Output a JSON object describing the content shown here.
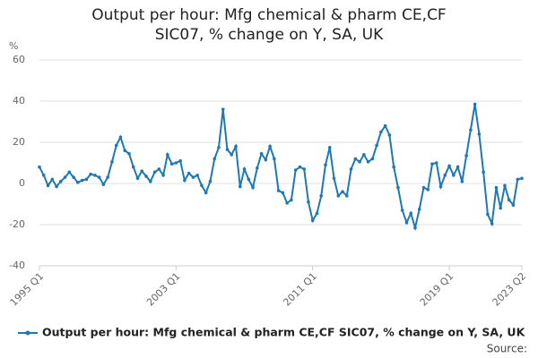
{
  "chart_data": {
    "type": "line",
    "title": "Output per hour: Mfg chemical & pharm CE,CF SIC07, % change on Y, SA, UK",
    "y_label": "%",
    "source": "Source:",
    "categories": [
      "1995 Q1",
      null,
      null,
      null,
      null,
      null,
      null,
      null,
      null,
      null,
      null,
      null,
      null,
      null,
      null,
      null,
      null,
      null,
      null,
      null,
      null,
      null,
      null,
      null,
      null,
      null,
      null,
      null,
      null,
      null,
      null,
      null,
      "2003 Q1",
      null,
      null,
      null,
      null,
      null,
      null,
      null,
      null,
      null,
      null,
      null,
      null,
      null,
      null,
      null,
      null,
      null,
      null,
      null,
      null,
      null,
      null,
      null,
      null,
      null,
      null,
      null,
      null,
      null,
      null,
      null,
      "2011 Q1",
      null,
      null,
      null,
      null,
      null,
      null,
      null,
      null,
      null,
      null,
      null,
      null,
      null,
      null,
      null,
      null,
      null,
      null,
      null,
      null,
      null,
      null,
      null,
      null,
      null,
      null,
      null,
      null,
      null,
      null,
      null,
      "2019 Q1",
      null,
      null,
      null,
      null,
      null,
      null,
      null,
      null,
      null,
      null,
      null,
      null,
      null,
      null,
      null,
      null,
      "2023 Q2"
    ],
    "series": [
      {
        "name": "Output per hour: Mfg chemical & pharm CE,CF SIC07, % change on Y, SA, UK",
        "color": "#1f78b4",
        "values": [
          8,
          4,
          -1,
          2,
          -1.5,
          1,
          3,
          5.5,
          3,
          0.5,
          1.5,
          2,
          4.5,
          4,
          3,
          -0.5,
          3,
          10.5,
          18.5,
          22.5,
          16,
          14.5,
          8,
          2.5,
          6,
          3.5,
          1,
          5.5,
          7,
          4,
          14,
          9.5,
          10,
          11,
          1.5,
          5,
          3,
          4,
          -1,
          -4.5,
          1,
          12,
          17.5,
          36,
          16.5,
          14,
          18,
          -1.5,
          7,
          2,
          -2,
          7.5,
          14.5,
          11.5,
          18,
          12,
          -3.5,
          -4.5,
          -9.5,
          -8,
          6.5,
          8,
          7,
          -9,
          -18,
          -14.5,
          -6,
          9,
          17.5,
          2.5,
          -6,
          -4,
          -6,
          7,
          12,
          10.5,
          14,
          10.5,
          12,
          18.5,
          25,
          28,
          23.5,
          8,
          -2,
          -13,
          -19,
          -14.5,
          -21.5,
          -12.5,
          -2,
          -3,
          9.5,
          10,
          -1.5,
          4,
          8.5,
          4,
          8,
          1,
          13.5,
          26,
          38.5,
          24,
          5.5,
          -15,
          -19.5,
          -2,
          -12,
          -1,
          -8,
          -10.5,
          2,
          2.5
        ]
      }
    ],
    "ylim": [
      -40,
      60
    ],
    "yticks": [
      -40,
      -20,
      0,
      20,
      40,
      60
    ],
    "grid": true
  }
}
